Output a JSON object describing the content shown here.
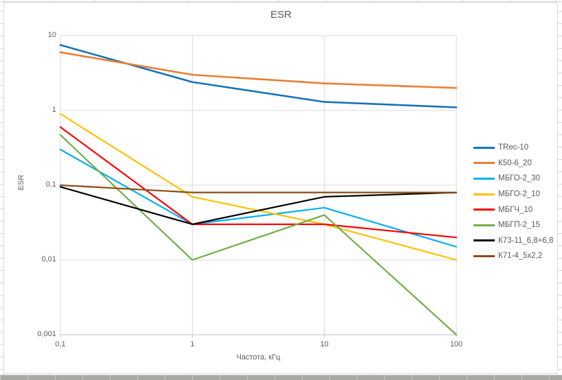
{
  "chart_data": {
    "type": "line",
    "title": "ESR",
    "xlabel": "Частота, кГц",
    "ylabel": "ESR",
    "x_scale": "log",
    "y_scale": "log",
    "xlim": [
      0.1,
      100
    ],
    "ylim": [
      0.001,
      10
    ],
    "grid": true,
    "legend_position": "right",
    "x": [
      0.1,
      1,
      10,
      100
    ],
    "x_ticks": [
      {
        "v": 0.1,
        "label": "0,1"
      },
      {
        "v": 1,
        "label": "1"
      },
      {
        "v": 10,
        "label": "10"
      },
      {
        "v": 100,
        "label": "100"
      }
    ],
    "y_ticks": [
      {
        "v": 10,
        "label": "10"
      },
      {
        "v": 1,
        "label": "1"
      },
      {
        "v": 0.1,
        "label": "0,1"
      },
      {
        "v": 0.01,
        "label": "0,01"
      },
      {
        "v": 0.001,
        "label": "0,001"
      }
    ],
    "series": [
      {
        "name": "TRec-10",
        "color": "#1572B8",
        "values": [
          7.5,
          2.4,
          1.3,
          1.1
        ]
      },
      {
        "name": "К50-6_20",
        "color": "#ED7D31",
        "values": [
          6,
          3,
          2.3,
          2
        ]
      },
      {
        "name": "МБГО-2_30",
        "color": "#00B0F0",
        "values": [
          0.3,
          0.03,
          0.05,
          0.015
        ]
      },
      {
        "name": "МБГО-2_10",
        "color": "#FFC000",
        "values": [
          0.9,
          0.07,
          0.03,
          0.01
        ]
      },
      {
        "name": "МБГЧ_10",
        "color": "#FF0000",
        "values": [
          0.6,
          0.03,
          0.03,
          0.02
        ]
      },
      {
        "name": "МБГП-2_15",
        "color": "#70AD47",
        "values": [
          0.47,
          0.01,
          0.04,
          0.001
        ]
      },
      {
        "name": "К73-11_6,8+6,8",
        "color": "#000000",
        "values": [
          0.095,
          0.03,
          0.07,
          0.08
        ]
      },
      {
        "name": "К71-4_5x2,2",
        "color": "#8B4A17",
        "values": [
          0.1,
          0.08,
          0.08,
          0.08
        ]
      }
    ],
    "colors": {
      "gridline": "#d9d9d9",
      "axis_line": "#bfbfbf",
      "label_text": "#595959"
    }
  }
}
